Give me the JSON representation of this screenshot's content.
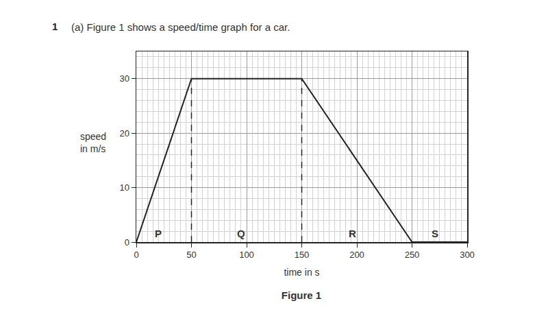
{
  "question": {
    "number": "1",
    "text": "(a) Figure 1 shows a speed/time graph for a car."
  },
  "chart_data": {
    "type": "line",
    "title": "Figure 1",
    "x_label": "time in s",
    "y_label": "speed\nin m/s",
    "x": [
      0,
      50,
      150,
      250,
      300
    ],
    "values": [
      0,
      30,
      30,
      0,
      0
    ],
    "color": "#222222",
    "xlim": [
      0,
      300
    ],
    "xticks": [
      0,
      50,
      100,
      150,
      200,
      250,
      300
    ],
    "ylim": [
      0,
      35
    ],
    "yticks": [
      0,
      10,
      20,
      30
    ],
    "grid": true,
    "dashed_x": [
      50,
      150
    ],
    "annotations": [
      {
        "text": "P",
        "x": 20,
        "y": 1.6
      },
      {
        "text": "Q",
        "x": 95,
        "y": 1.6
      },
      {
        "text": "R",
        "x": 196,
        "y": 1.6
      },
      {
        "text": "S",
        "x": 271,
        "y": 1.6
      }
    ]
  }
}
